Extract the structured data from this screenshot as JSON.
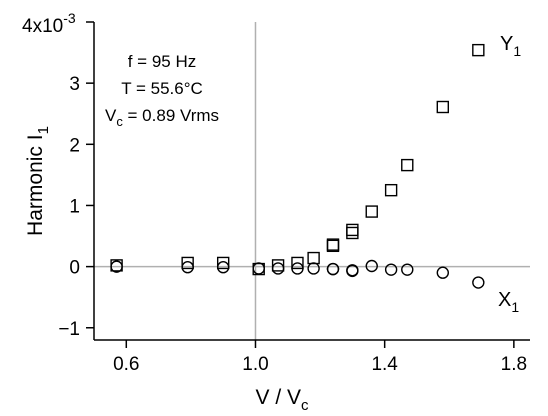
{
  "chart_data": {
    "type": "scatter",
    "title": "",
    "xlabel": "V / V",
    "xlabel_sub": "c",
    "ylabel": "Harmonic  I",
    "ylabel_sub": "1",
    "y_scale_label": "4x10",
    "y_scale_exp": "-3",
    "xlim": [
      0.5,
      1.85
    ],
    "ylim": [
      -1.2,
      4.0
    ],
    "x_ticks": [
      0.6,
      1.0,
      1.4,
      1.8
    ],
    "x_tick_labels": [
      "0.6",
      "1.0",
      "1.4",
      "1.8"
    ],
    "y_ticks": [
      -1,
      0,
      1,
      2,
      3
    ],
    "y_tick_labels": [
      "−1",
      "0",
      "1",
      "2",
      "3"
    ],
    "reference_lines": {
      "x": 1.0,
      "y": 0
    },
    "grid": false,
    "annotations": [
      "f = 95 Hz",
      "T = 55.6°C",
      "V",
      "c",
      " = 0.89 Vrms"
    ],
    "series": [
      {
        "name": "Y",
        "name_sub": "1",
        "marker": "square",
        "x": [
          0.57,
          0.79,
          0.9,
          1.01,
          1.07,
          1.13,
          1.18,
          1.24,
          1.24,
          1.3,
          1.3,
          1.36,
          1.42,
          1.47,
          1.58,
          1.69
        ],
        "y": [
          0.02,
          0.06,
          0.06,
          -0.04,
          0.02,
          0.06,
          0.14,
          0.34,
          0.36,
          0.55,
          0.6,
          0.9,
          1.25,
          1.66,
          2.61,
          3.54
        ]
      },
      {
        "name": "X",
        "name_sub": "1",
        "marker": "circle",
        "x": [
          0.57,
          0.79,
          0.9,
          1.01,
          1.07,
          1.13,
          1.18,
          1.24,
          1.24,
          1.3,
          1.3,
          1.36,
          1.42,
          1.47,
          1.58,
          1.69
        ],
        "y": [
          0.0,
          -0.01,
          -0.01,
          -0.03,
          -0.03,
          -0.03,
          -0.03,
          -0.04,
          -0.04,
          -0.06,
          -0.07,
          0.01,
          -0.05,
          -0.05,
          -0.1,
          -0.26
        ]
      }
    ]
  }
}
